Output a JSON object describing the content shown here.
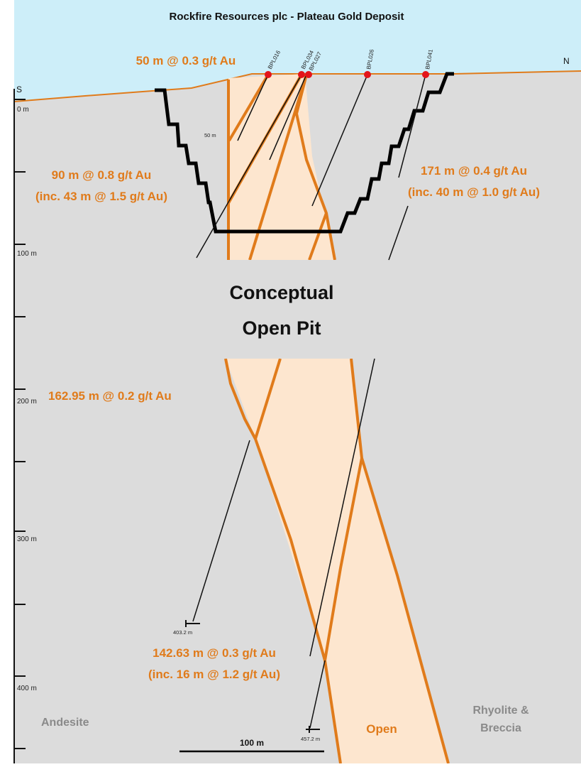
{
  "title": "Rockfire Resources plc - Plateau Gold Deposit",
  "directions": {
    "south": "S",
    "north": "N"
  },
  "depth_labels": [
    "0 m",
    "100 m",
    "200 m",
    "300 m",
    "400 m"
  ],
  "intercepts": [
    {
      "line1": "50 m @ 0.3 g/t Au",
      "line2": ""
    },
    {
      "line1": "90 m @ 0.8 g/t Au",
      "line2": "(inc. 43 m @ 1.5 g/t Au)"
    },
    {
      "line1": "171 m @ 0.4 g/t Au",
      "line2": "(inc. 40 m @ 1.0 g/t Au)"
    },
    {
      "line1": "162.95 m @ 0.2 g/t Au",
      "line2": ""
    },
    {
      "line1": "142.63 m @ 0.3 g/t Au",
      "line2": "(inc. 16 m @ 1.2 g/t Au)"
    }
  ],
  "drillholes": [
    {
      "id": "BPL016"
    },
    {
      "id": "BPL034"
    },
    {
      "id": "BPL027"
    },
    {
      "id": "BPL026"
    },
    {
      "id": "BPL041"
    }
  ],
  "hole_depths": [
    "50 m",
    "403.2 m",
    "457.2 m"
  ],
  "pit_label": {
    "line1": "Conceptual",
    "line2": "Open Pit"
  },
  "rock_labels": {
    "left": "Andesite",
    "right_line1": "Rhyolite &",
    "right_line2": "Breccia"
  },
  "open_label": "Open",
  "scale_label": "100 m",
  "colors": {
    "sky": "#cdeef9",
    "ground": "#dcdcdc",
    "zone_fill": "#fde6cf",
    "zone_line": "#e07b1b",
    "collar": "#e3151b",
    "pit_outline": "#000000",
    "text_orange": "#e07b1b"
  }
}
